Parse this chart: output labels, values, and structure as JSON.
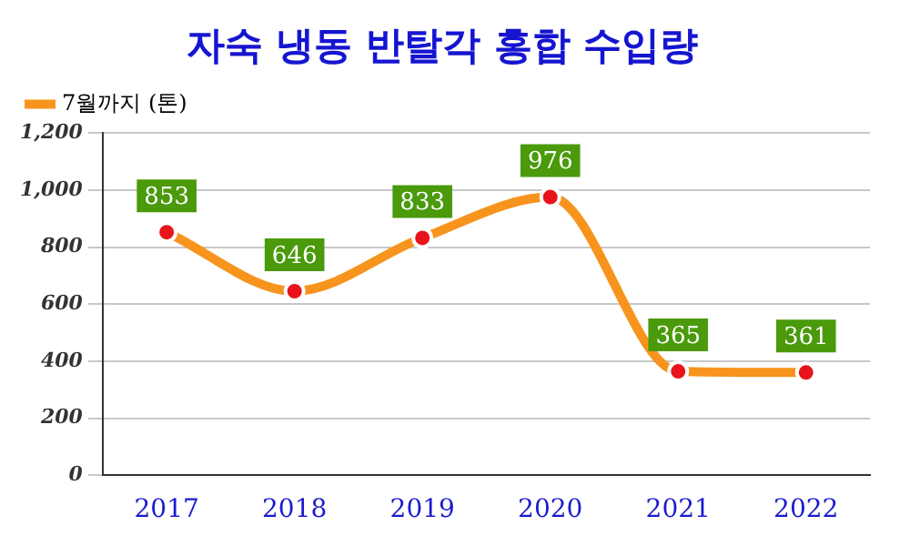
{
  "chart_data": {
    "type": "line",
    "title": "자숙 냉동 반탈각 홍합 수입량",
    "categories": [
      "2017",
      "2018",
      "2019",
      "2020",
      "2021",
      "2022"
    ],
    "series": [
      {
        "name": "7월까지 (톤)",
        "color": "#f7941d",
        "values": [
          853,
          646,
          833,
          976,
          365,
          361
        ]
      }
    ],
    "ylim": [
      0,
      1200
    ],
    "yticks": [
      0,
      200,
      400,
      600,
      800,
      {
        "value": 1000,
        "label": "1,000"
      },
      {
        "value": 1200,
        "label": "1,200"
      }
    ],
    "grid": "y",
    "legend": "top left",
    "marker": "circle",
    "line_style": "solid",
    "data_labels": true
  }
}
